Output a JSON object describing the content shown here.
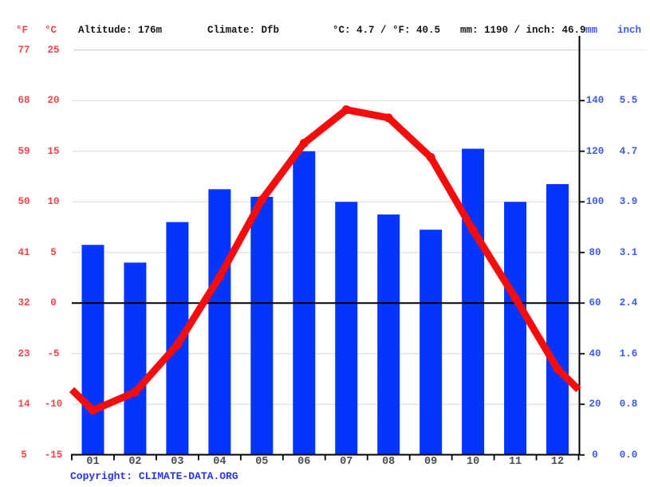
{
  "header": {
    "temp_f_unit": "°F",
    "temp_c_unit": "°C",
    "altitude": "Altitude: 176m",
    "climate": "Climate: Dfb",
    "avg_temp": "°C: 4.7 / °F: 40.5",
    "total_precip": "mm: 1190 / inch: 46.9",
    "mm_unit": "mm",
    "inch_unit": "inch"
  },
  "axes": {
    "left_fahrenheit": [
      "77",
      "68",
      "59",
      "50",
      "41",
      "32",
      "23",
      "14",
      "5"
    ],
    "left_celsius": [
      "25",
      "20",
      "15",
      "10",
      "5",
      "0",
      "-5",
      "-10",
      "-15"
    ],
    "right_mm": [
      "140",
      "120",
      "100",
      "80",
      "60",
      "40",
      "20",
      "0"
    ],
    "right_inch": [
      "5.5",
      "4.7",
      "3.9",
      "3.1",
      "2.4",
      "1.6",
      "0.8",
      "0.0"
    ]
  },
  "copyright": {
    "prefix": "Copyright:",
    "link": "CLIMATE-DATA.ORG"
  },
  "colors": {
    "bar_blue": "#0435fc",
    "line_red": "#f50d0d",
    "label_red": "#fa4348",
    "label_blue": "#3d5af1",
    "month_gray": "#4d4d4d",
    "gridline_gray": "#d9d9d9",
    "axis_black": "#000000",
    "copyright_blue": "#2433ef"
  },
  "chart_data": {
    "type": "combo",
    "categories": [
      "01",
      "02",
      "03",
      "04",
      "05",
      "06",
      "07",
      "08",
      "09",
      "10",
      "11",
      "12"
    ],
    "series": [
      {
        "name": "precipitation",
        "type": "bar",
        "unit": "mm",
        "values": [
          83,
          76,
          92,
          105,
          102,
          120,
          100,
          95,
          89,
          121,
          100,
          107
        ]
      },
      {
        "name": "temperature",
        "type": "line",
        "unit": "°C",
        "values": [
          -10.6,
          -8.8,
          -4.1,
          2.6,
          10.2,
          15.8,
          19.1,
          18.3,
          14.4,
          7.2,
          0.5,
          -6.5
        ]
      }
    ],
    "title": "",
    "xlabel": "",
    "ylabel_left": "°F / °C",
    "ylabel_right": "mm / inch",
    "temp_axis_c_range": [
      -15,
      25
    ],
    "temp_axis_f_range": [
      5,
      77
    ],
    "precip_axis_mm_range": [
      0,
      160
    ],
    "precip_axis_inch_range": [
      0.0,
      6.3
    ],
    "grid": true,
    "zero_line_c": 0,
    "annotations": {
      "annual_mean_c": 4.7,
      "annual_mean_f": 40.5,
      "annual_precip_mm": 1190,
      "annual_precip_inch": 46.9,
      "altitude_m": 176,
      "koppen_class": "Dfb"
    },
    "legend_position": "none",
    "line_extends_to_plot_edges": true
  }
}
